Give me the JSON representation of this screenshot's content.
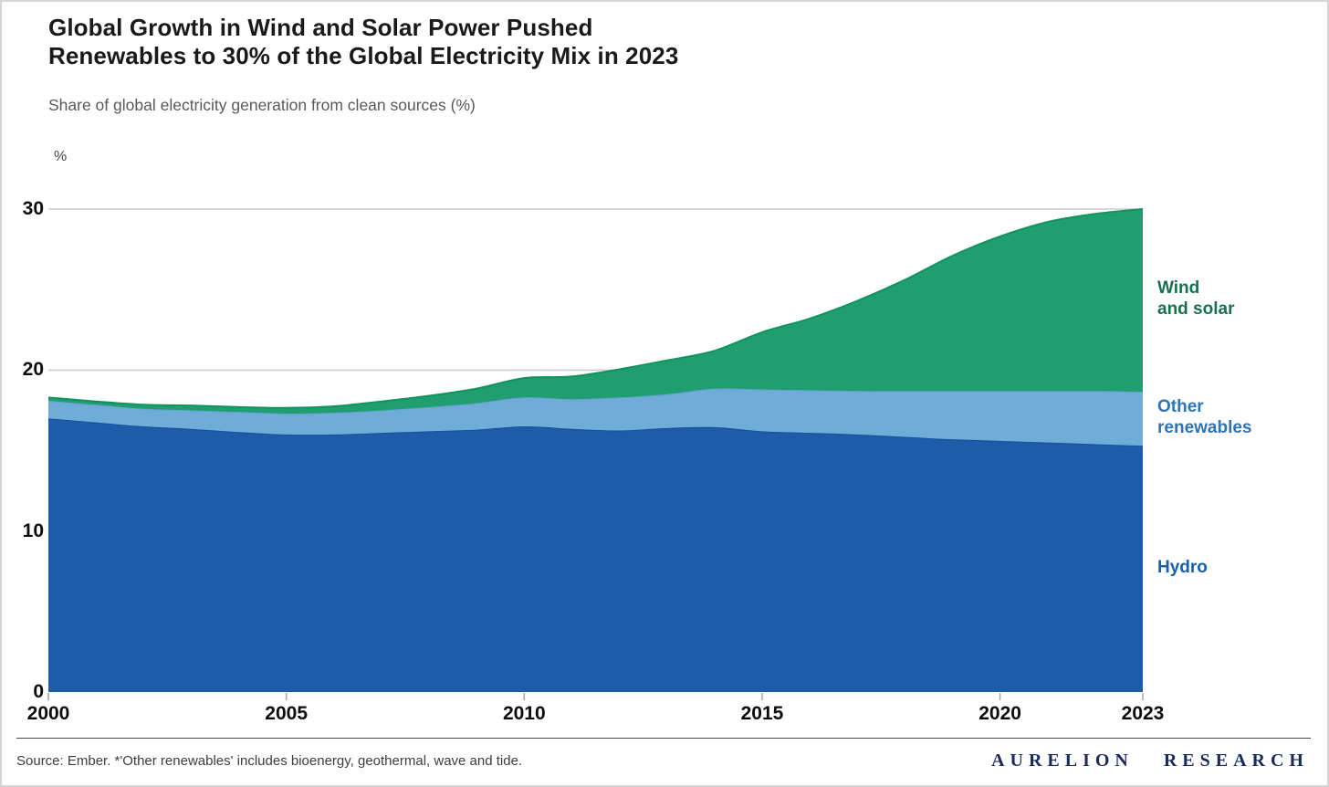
{
  "header": {
    "title_line1": "Global Growth in Wind and Solar Power Pushed",
    "title_line2": "Renewables to 30% of the Global Electricity Mix in 2023",
    "subtitle": "Share of global electricity generation from clean sources (%)"
  },
  "chart_data": {
    "type": "area",
    "stacked": true,
    "title": "Global Growth in Wind and Solar Power Pushed Renewables to 30% of the Global Electricity Mix in 2023",
    "ylabel": "%",
    "ylim": [
      0,
      30
    ],
    "grid": "horizontal",
    "legend_position": "right-of-plot",
    "x": [
      2000,
      2001,
      2002,
      2003,
      2004,
      2005,
      2006,
      2007,
      2008,
      2009,
      2010,
      2011,
      2012,
      2013,
      2014,
      2015,
      2016,
      2017,
      2018,
      2019,
      2020,
      2021,
      2022,
      2023
    ],
    "y_ticks": [
      0,
      10,
      20,
      30
    ],
    "x_ticks": [
      2000,
      2005,
      2010,
      2015,
      2020,
      2023
    ],
    "series": [
      {
        "name": "Hydro",
        "color": "#1d5ca9",
        "edge_color": "#15509c",
        "label_color": "#1560b0",
        "values": [
          17.0,
          16.75,
          16.5,
          16.35,
          16.15,
          16.0,
          16.0,
          16.1,
          16.2,
          16.3,
          16.5,
          16.35,
          16.25,
          16.4,
          16.45,
          16.2,
          16.1,
          16.0,
          15.85,
          15.7,
          15.6,
          15.5,
          15.4,
          15.3
        ]
      },
      {
        "name": "Other renewables",
        "color": "#6fadd8",
        "edge_color": "#61a2d0",
        "label_color": "#2e74b5",
        "values": [
          1.1,
          1.1,
          1.1,
          1.15,
          1.25,
          1.3,
          1.35,
          1.4,
          1.5,
          1.65,
          1.8,
          1.85,
          2.05,
          2.1,
          2.4,
          2.6,
          2.65,
          2.7,
          2.85,
          3.0,
          3.1,
          3.2,
          3.3,
          3.35
        ]
      },
      {
        "name": "Wind and solar",
        "color": "#219e70",
        "edge_color": "#11935f",
        "label_color": "#15724f",
        "values": [
          0.2,
          0.2,
          0.25,
          0.3,
          0.3,
          0.35,
          0.4,
          0.55,
          0.7,
          0.9,
          1.2,
          1.4,
          1.75,
          2.1,
          2.35,
          3.55,
          4.45,
          5.6,
          6.9,
          8.4,
          9.6,
          10.5,
          11.0,
          11.35
        ]
      }
    ],
    "totals_note": {
      "start_2000": 18.3,
      "end_2023": 30.0
    }
  },
  "series_labels": {
    "wind_solar": "Wind\nand solar",
    "other": "Other\nrenewables",
    "hydro": "Hydro"
  },
  "footer": {
    "source": "Source: Ember. *'Other renewables' includes bioenergy, geothermal, wave and tide.",
    "brand": "AURELION RESEARCH"
  }
}
